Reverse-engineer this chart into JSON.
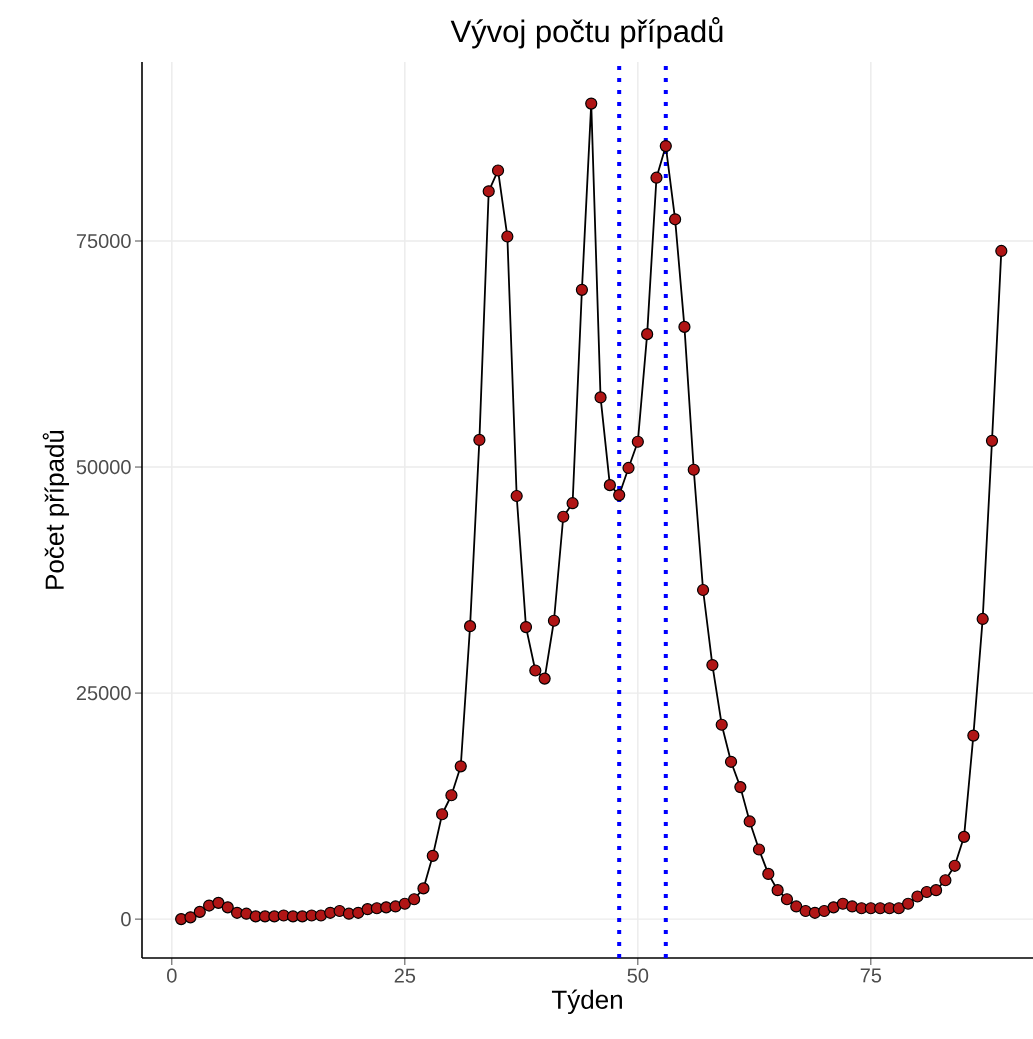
{
  "chart_data": {
    "type": "line",
    "title": "Vývoj počtu případů",
    "xlabel": "Týden",
    "ylabel": "Počet případů",
    "x": [
      1,
      2,
      3,
      4,
      5,
      6,
      7,
      8,
      9,
      10,
      11,
      12,
      13,
      14,
      15,
      16,
      17,
      18,
      19,
      20,
      21,
      22,
      23,
      24,
      25,
      26,
      27,
      28,
      29,
      30,
      31,
      32,
      33,
      34,
      35,
      36,
      37,
      38,
      39,
      40,
      41,
      42,
      43,
      44,
      45,
      46,
      47,
      48,
      49,
      50,
      51,
      52,
      53,
      54,
      55,
      56,
      57,
      58,
      59,
      60,
      61,
      62,
      63,
      64,
      65,
      66,
      67,
      68,
      69,
      70,
      71,
      72,
      73,
      74,
      75,
      76,
      77,
      78,
      79,
      80,
      81,
      82,
      83,
      84,
      85,
      86,
      87,
      88,
      89
    ],
    "series": [
      {
        "color": "#b01515",
        "values": [
          0,
          200,
          800,
          1500,
          1800,
          1300,
          700,
          600,
          300,
          300,
          300,
          400,
          300,
          300,
          400,
          400,
          700,
          900,
          600,
          700,
          1100,
          1200,
          1300,
          1400,
          1700,
          2200,
          3400,
          7000,
          11600,
          13700,
          16900,
          32400,
          53000,
          80500,
          82800,
          75500,
          46800,
          32300,
          27500,
          26600,
          33000,
          44500,
          46000,
          69600,
          90200,
          57700,
          48000,
          46900,
          49900,
          52800,
          64700,
          82000,
          85500,
          77400,
          65500,
          49700,
          36400,
          28100,
          21500,
          17400,
          14600,
          10800,
          7700,
          5000,
          3200,
          2200,
          1400,
          900,
          700,
          900,
          1300,
          1700,
          1400,
          1200,
          1200,
          1200,
          1200,
          1200,
          1700,
          2500,
          3000,
          3200,
          4300,
          5900,
          9100,
          20300,
          33200,
          52900,
          73900
        ]
      }
    ],
    "xlim": [
      -3.2,
      92.4
    ],
    "ylim": [
      -4300,
      94800
    ],
    "xticks": [
      0,
      25,
      50,
      75
    ],
    "yticks": [
      0,
      25000,
      50000,
      75000
    ],
    "grid": true,
    "marker": "circle",
    "line_style": "solid",
    "ref_lines": [
      {
        "axis": "x",
        "value": 48,
        "color": "#0000ff",
        "line_style": "dotted"
      },
      {
        "axis": "x",
        "value": 53,
        "color": "#0000ff",
        "line_style": "dotted"
      }
    ]
  }
}
